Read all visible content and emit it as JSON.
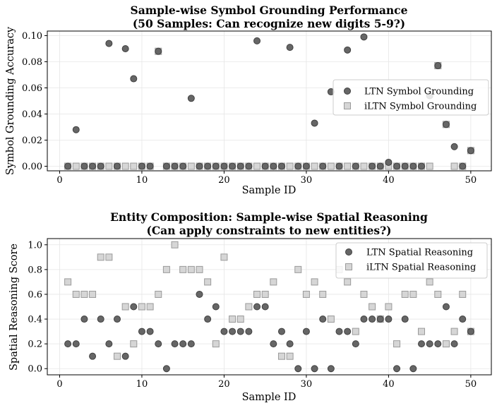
{
  "chart_data": [
    {
      "type": "scatter",
      "title_lines": [
        "Sample-wise Symbol Grounding Performance",
        "(50 Samples: Can recognize new digits 5-9?)"
      ],
      "xlabel": "Sample ID",
      "ylabel": "Symbol Grounding Accuracy",
      "xlim": [
        -1.5,
        52.5
      ],
      "ylim": [
        -0.0035,
        0.1035
      ],
      "xticks": [
        0,
        10,
        20,
        30,
        40,
        50
      ],
      "yticks": [
        0.0,
        0.02,
        0.04,
        0.06,
        0.08,
        0.1
      ],
      "ytick_labels": [
        "0.00",
        "0.02",
        "0.04",
        "0.06",
        "0.08",
        "0.10"
      ],
      "grid": true,
      "legend_position": "center-right",
      "x": [
        1,
        2,
        3,
        4,
        5,
        6,
        7,
        8,
        9,
        10,
        11,
        12,
        13,
        14,
        15,
        16,
        17,
        18,
        19,
        20,
        21,
        22,
        23,
        24,
        25,
        26,
        27,
        28,
        29,
        30,
        31,
        32,
        33,
        34,
        35,
        36,
        37,
        38,
        39,
        40,
        41,
        42,
        43,
        44,
        45,
        46,
        47,
        48,
        49,
        50
      ],
      "series": [
        {
          "name": "LTN Symbol Grounding",
          "marker": "circle",
          "color": "#666666",
          "edge": "#404040",
          "values": [
            0,
            0.028,
            0,
            0,
            0,
            0.094,
            0,
            0.09,
            0.067,
            0,
            0,
            0.088,
            0,
            0,
            0,
            0.052,
            0,
            0,
            0,
            0,
            0,
            0,
            0,
            0.096,
            0,
            0,
            0,
            0.091,
            0,
            0,
            0.033,
            0,
            0.057,
            0,
            0.089,
            0,
            0.099,
            0,
            0,
            0.003,
            0,
            0,
            0,
            0,
            0.054,
            0.077,
            0.032,
            0.015,
            0,
            0.012
          ]
        },
        {
          "name": "iLTN Symbol Grounding",
          "marker": "square",
          "color": "#d6d6d6",
          "edge": "#9a9a9a",
          "values": [
            0,
            0,
            0,
            0,
            0,
            0,
            0,
            0,
            0,
            0,
            0,
            0.088,
            0,
            0,
            0,
            0,
            0,
            0,
            0,
            0,
            0,
            0,
            0,
            0,
            0,
            0,
            0,
            0,
            0,
            0,
            0,
            0,
            0,
            0,
            0,
            0,
            0,
            0,
            0,
            0,
            0,
            0,
            0,
            0,
            0,
            0.077,
            0.032,
            0,
            0,
            0.012
          ]
        }
      ]
    },
    {
      "type": "scatter",
      "title_lines": [
        "Entity Composition: Sample-wise Spatial Reasoning",
        "(Can apply constraints to new entities?)"
      ],
      "xlabel": "Sample ID",
      "ylabel": "Spatial Reasoning Score",
      "xlim": [
        -1.5,
        52.5
      ],
      "ylim": [
        -0.05,
        1.05
      ],
      "xticks": [
        0,
        10,
        20,
        30,
        40,
        50
      ],
      "yticks": [
        0.0,
        0.2,
        0.4,
        0.6,
        0.8,
        1.0
      ],
      "ytick_labels": [
        "0.0",
        "0.2",
        "0.4",
        "0.6",
        "0.8",
        "1.0"
      ],
      "grid": true,
      "legend_position": "top-right",
      "x": [
        1,
        2,
        3,
        4,
        5,
        6,
        7,
        8,
        9,
        10,
        11,
        12,
        13,
        14,
        15,
        16,
        17,
        18,
        19,
        20,
        21,
        22,
        23,
        24,
        25,
        26,
        27,
        28,
        29,
        30,
        31,
        32,
        33,
        34,
        35,
        36,
        37,
        38,
        39,
        40,
        41,
        42,
        43,
        44,
        45,
        46,
        47,
        48,
        49,
        50
      ],
      "series": [
        {
          "name": "LTN Spatial Reasoning",
          "marker": "circle",
          "color": "#666666",
          "edge": "#404040",
          "values": [
            0.2,
            0.2,
            0.4,
            0.1,
            0.4,
            0.2,
            0.4,
            0.1,
            0.5,
            0.3,
            0.3,
            0.2,
            0.0,
            0.2,
            0.2,
            0.2,
            0.6,
            0.4,
            0.5,
            0.3,
            0.3,
            0.3,
            0.3,
            0.5,
            0.5,
            0.2,
            0.3,
            0.2,
            0.0,
            0.3,
            0.0,
            0.4,
            0.0,
            0.3,
            0.3,
            0.2,
            0.4,
            0.4,
            0.4,
            0.4,
            0.0,
            0.4,
            0.0,
            0.2,
            0.2,
            0.2,
            0.5,
            0.2,
            0.4,
            0.3
          ]
        },
        {
          "name": "iLTN Spatial Reasoning",
          "marker": "square",
          "color": "#d6d6d6",
          "edge": "#9a9a9a",
          "values": [
            0.7,
            0.6,
            0.6,
            0.6,
            0.9,
            0.9,
            0.1,
            0.5,
            0.2,
            0.5,
            0.5,
            0.6,
            0.8,
            1.0,
            0.8,
            0.8,
            0.8,
            0.7,
            0.2,
            0.9,
            0.4,
            0.4,
            0.5,
            0.6,
            0.6,
            0.7,
            0.1,
            0.1,
            0.8,
            0.6,
            0.7,
            0.6,
            0.4,
            0.8,
            0.7,
            0.3,
            0.6,
            0.5,
            0.4,
            0.5,
            0.2,
            0.6,
            0.6,
            0.3,
            0.7,
            0.6,
            0.2,
            0.3,
            0.6,
            0.3
          ]
        }
      ]
    }
  ]
}
